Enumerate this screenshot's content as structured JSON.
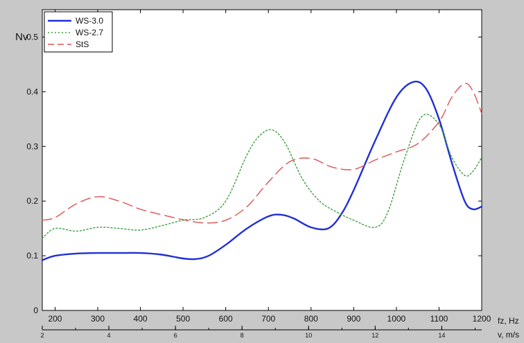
{
  "chart_data": {
    "type": "line",
    "ylabel": "Nv",
    "xlabel": "fz, Hz",
    "x2label": "v, m/s",
    "xlim": [
      170,
      1200
    ],
    "ylim": [
      0,
      0.55
    ],
    "x_ticks": [
      200,
      300,
      400,
      500,
      600,
      700,
      800,
      900,
      1000,
      1100,
      1200
    ],
    "y_ticks": [
      0,
      0.1,
      0.2,
      0.3,
      0.4,
      0.5
    ],
    "y_tick_labels": [
      "0",
      "0.1",
      "0.2",
      "0.3",
      "0.4",
      "0.5"
    ],
    "x2_ticks": [
      2,
      4,
      6,
      8,
      10,
      12,
      14
    ],
    "x2_range": [
      2,
      15.2
    ],
    "grid": false,
    "legend_position": "top-left",
    "series": [
      {
        "name": "WS-3.0",
        "color": "#1f2fd6",
        "style": "solid",
        "x": [
          170,
          200,
          250,
          300,
          350,
          400,
          450,
          500,
          530,
          560,
          600,
          650,
          700,
          730,
          760,
          800,
          840,
          870,
          900,
          950,
          1000,
          1040,
          1070,
          1100,
          1130,
          1160,
          1180,
          1200
        ],
        "y": [
          0.092,
          0.1,
          0.104,
          0.105,
          0.105,
          0.105,
          0.102,
          0.095,
          0.094,
          0.1,
          0.12,
          0.15,
          0.172,
          0.175,
          0.168,
          0.152,
          0.15,
          0.175,
          0.22,
          0.31,
          0.39,
          0.418,
          0.405,
          0.35,
          0.27,
          0.2,
          0.185,
          0.19
        ]
      },
      {
        "name": "WS-2.7",
        "color": "#3c9e3c",
        "style": "dotted",
        "x": [
          170,
          200,
          250,
          300,
          350,
          400,
          450,
          500,
          550,
          600,
          650,
          680,
          710,
          740,
          780,
          820,
          860,
          900,
          950,
          980,
          1020,
          1060,
          1100,
          1130,
          1160,
          1180,
          1200
        ],
        "y": [
          0.132,
          0.15,
          0.145,
          0.152,
          0.15,
          0.147,
          0.155,
          0.165,
          0.17,
          0.2,
          0.285,
          0.32,
          0.33,
          0.305,
          0.24,
          0.2,
          0.18,
          0.165,
          0.152,
          0.18,
          0.28,
          0.355,
          0.34,
          0.28,
          0.247,
          0.255,
          0.28
        ]
      },
      {
        "name": "StS",
        "color": "#e05050",
        "style": "dashed",
        "x": [
          170,
          200,
          250,
          300,
          350,
          400,
          450,
          500,
          550,
          600,
          650,
          700,
          750,
          800,
          850,
          900,
          950,
          1000,
          1050,
          1100,
          1130,
          1160,
          1180,
          1200
        ],
        "y": [
          0.165,
          0.17,
          0.195,
          0.208,
          0.2,
          0.185,
          0.175,
          0.166,
          0.16,
          0.165,
          0.19,
          0.235,
          0.272,
          0.278,
          0.262,
          0.258,
          0.275,
          0.29,
          0.305,
          0.345,
          0.39,
          0.415,
          0.4,
          0.36
        ]
      }
    ]
  }
}
